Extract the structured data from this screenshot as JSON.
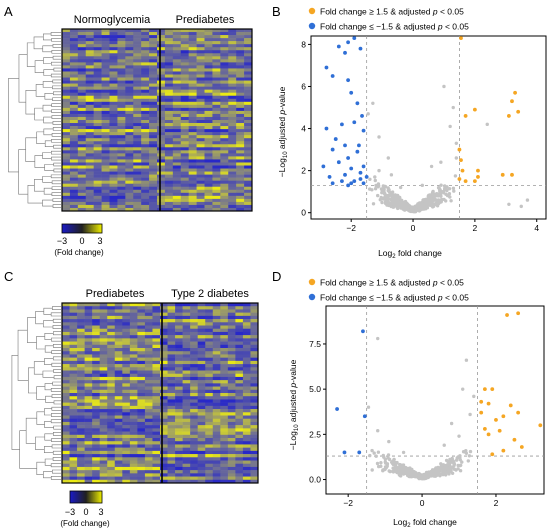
{
  "panels": {
    "A": {
      "letter": "A",
      "groups": [
        "Normoglycemia",
        "Prediabetes"
      ],
      "colorbar": {
        "ticks": [
          "−3",
          "0",
          "3"
        ],
        "label": "(Fold change)",
        "colors": [
          "#1a1ac8",
          "#202020",
          "#f0f000"
        ]
      }
    },
    "B": {
      "letter": "B",
      "legend": [
        {
          "pre": "Fold change ≥ 1.5 & adjusted ",
          "it": "p",
          "post": " < 0.05",
          "color": "#f5a623"
        },
        {
          "pre": "Fold change ≤ −1.5 & adjusted ",
          "it": "p",
          "post": " < 0.05",
          "color": "#2f6fd6"
        }
      ]
    },
    "C": {
      "letter": "C",
      "groups": [
        "Prediabetes",
        "Type 2 diabetes"
      ],
      "colorbar": {
        "ticks": [
          "−3",
          "0",
          "3"
        ],
        "label": "(Fold change)",
        "colors": [
          "#1a1ac8",
          "#202020",
          "#f0f000"
        ]
      }
    },
    "D": {
      "letter": "D",
      "legend": [
        {
          "pre": "Fold change ≥ 1.5 & adjusted ",
          "it": "p",
          "post": " < 0.05",
          "color": "#f5a623"
        },
        {
          "pre": "Fold change ≤ −1.5 & adjusted ",
          "it": "p",
          "post": " < 0.05",
          "color": "#2f6fd6"
        }
      ]
    }
  },
  "chart_data": [
    {
      "panel": "B",
      "type": "scatter",
      "xlabel": "Log2 fold change",
      "ylabel": "−Log10 adjusted p-value",
      "xlim": [
        -3.3,
        4.3
      ],
      "ylim": [
        -0.3,
        8.4
      ],
      "xticks": [
        -2,
        0,
        2,
        4
      ],
      "yticks": [
        0,
        2,
        4,
        6,
        8
      ],
      "thresholds": {
        "x": [
          -1.5,
          1.5
        ],
        "y": 1.3
      },
      "colors": {
        "up": "#f5a623",
        "down": "#2f6fd6",
        "ns": "#c4c4c4"
      },
      "up": [
        [
          1.55,
          8.3
        ],
        [
          3.3,
          5.7
        ],
        [
          3.2,
          5.3
        ],
        [
          3.4,
          4.8
        ],
        [
          3.1,
          4.6
        ],
        [
          2.0,
          4.9
        ],
        [
          1.7,
          4.6
        ],
        [
          1.5,
          3.0
        ],
        [
          1.55,
          2.5
        ],
        [
          1.6,
          2.0
        ],
        [
          1.5,
          1.6
        ],
        [
          2.1,
          1.7
        ],
        [
          2.1,
          2.0
        ],
        [
          2.9,
          1.8
        ],
        [
          3.2,
          1.8
        ],
        [
          1.7,
          1.5
        ],
        [
          2.0,
          1.5
        ]
      ],
      "down": [
        [
          -1.9,
          8.3
        ],
        [
          -2.1,
          8.1
        ],
        [
          -2.4,
          7.9
        ],
        [
          -1.7,
          7.8
        ],
        [
          -2.2,
          7.6
        ],
        [
          -2.8,
          6.9
        ],
        [
          -2.6,
          6.5
        ],
        [
          -2.1,
          6.3
        ],
        [
          -2.0,
          5.7
        ],
        [
          -1.8,
          5.2
        ],
        [
          -1.65,
          4.6
        ],
        [
          -1.9,
          4.3
        ],
        [
          -2.3,
          4.2
        ],
        [
          -2.8,
          4.0
        ],
        [
          -1.6,
          3.9
        ],
        [
          -2.5,
          3.5
        ],
        [
          -1.75,
          3.2
        ],
        [
          -2.2,
          3.2
        ],
        [
          -2.6,
          3.0
        ],
        [
          -1.8,
          2.9
        ],
        [
          -2.1,
          2.6
        ],
        [
          -2.4,
          2.4
        ],
        [
          -2.9,
          2.2
        ],
        [
          -1.6,
          2.2
        ],
        [
          -2.0,
          2.1
        ],
        [
          -1.7,
          1.9
        ],
        [
          -2.2,
          1.8
        ],
        [
          -2.7,
          1.7
        ],
        [
          -1.5,
          1.7
        ],
        [
          -1.9,
          1.5
        ],
        [
          -2.3,
          1.5
        ],
        [
          -1.6,
          1.4
        ],
        [
          -2.0,
          1.4
        ],
        [
          -2.6,
          1.4
        ],
        [
          -1.7,
          1.6
        ],
        [
          -2.1,
          1.3
        ]
      ],
      "ns": [
        [
          -1.3,
          5.2
        ],
        [
          -1.1,
          3.6
        ],
        [
          -0.8,
          2.6
        ],
        [
          -1.45,
          4.7
        ],
        [
          1.2,
          4.1
        ],
        [
          1.3,
          5.0
        ],
        [
          1.0,
          6.0
        ],
        [
          0.6,
          2.2
        ],
        [
          1.4,
          2.6
        ],
        [
          -1.1,
          2.0
        ],
        [
          -0.7,
          1.8
        ],
        [
          0.9,
          2.4
        ],
        [
          0.3,
          1.3
        ],
        [
          -0.4,
          1.2
        ],
        [
          1.4,
          3.3
        ],
        [
          2.4,
          4.2
        ],
        [
          3.7,
          0.6
        ],
        [
          3.5,
          0.3
        ],
        [
          3.1,
          0.4
        ]
      ]
    },
    {
      "panel": "D",
      "type": "scatter",
      "xlabel": "Log2 fold change",
      "ylabel": "−Log10 adjusted p-value",
      "xlim": [
        -2.6,
        3.3
      ],
      "ylim": [
        -0.8,
        9.6
      ],
      "xticks": [
        -2,
        0,
        2
      ],
      "yticks": [
        0.0,
        2.5,
        5.0,
        7.5
      ],
      "thresholds": {
        "x": [
          -1.5,
          1.5
        ],
        "y": 1.3
      },
      "colors": {
        "up": "#f5a623",
        "down": "#2f6fd6",
        "ns": "#c4c4c4"
      },
      "up": [
        [
          2.3,
          9.1
        ],
        [
          2.6,
          9.2
        ],
        [
          1.7,
          5.0
        ],
        [
          1.9,
          5.0
        ],
        [
          1.6,
          4.3
        ],
        [
          1.8,
          4.2
        ],
        [
          2.4,
          4.1
        ],
        [
          2.6,
          3.7
        ],
        [
          1.6,
          3.7
        ],
        [
          2.2,
          3.5
        ],
        [
          2.0,
          3.3
        ],
        [
          3.2,
          3.0
        ],
        [
          1.7,
          2.8
        ],
        [
          2.1,
          2.7
        ],
        [
          1.8,
          2.5
        ],
        [
          2.5,
          2.2
        ],
        [
          2.7,
          1.8
        ],
        [
          2.2,
          1.6
        ],
        [
          1.9,
          1.4
        ]
      ],
      "down": [
        [
          -2.3,
          3.9
        ],
        [
          -1.6,
          8.2
        ],
        [
          -1.55,
          3.5
        ],
        [
          -1.7,
          1.5
        ],
        [
          -2.1,
          1.5
        ]
      ],
      "ns": [
        [
          -1.2,
          7.8
        ],
        [
          1.2,
          6.6
        ],
        [
          0.8,
          3.1
        ],
        [
          -0.9,
          2.1
        ],
        [
          -1.2,
          2.7
        ],
        [
          1.3,
          3.6
        ],
        [
          1.0,
          2.4
        ],
        [
          1.4,
          4.6
        ],
        [
          -0.5,
          1.5
        ],
        [
          0.6,
          1.9
        ],
        [
          -1.45,
          4.0
        ],
        [
          1.1,
          5.0
        ]
      ]
    }
  ]
}
